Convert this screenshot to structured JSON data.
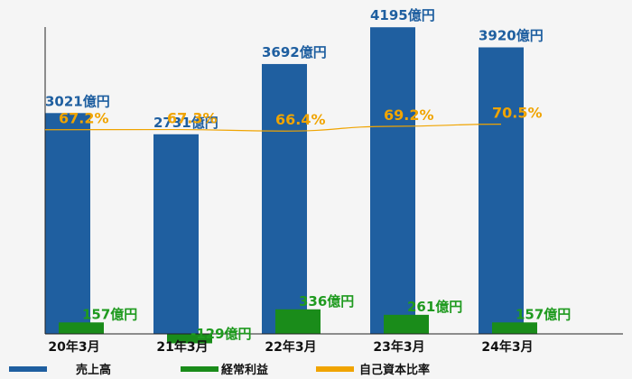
{
  "chart_data": {
    "type": "bar",
    "categories": [
      "20年3月",
      "21年3月",
      "22年3月",
      "23年3月",
      "24年3月"
    ],
    "series": [
      {
        "name": "売上高",
        "unit": "億円",
        "values": [
          3021,
          2731,
          3692,
          4195,
          3920
        ],
        "labels": [
          "3021億円",
          "2731億円",
          "3692億円",
          "4195億円",
          "3920億円"
        ],
        "color": "#1f5fa0"
      },
      {
        "name": "経常利益",
        "unit": "億円",
        "values": [
          157,
          -129,
          336,
          261,
          157
        ],
        "labels": [
          "157億円",
          "-129億円",
          "336億円",
          "261億円",
          "157億円"
        ],
        "color": "#1a8c1a"
      },
      {
        "name": "自己資本比率",
        "type": "line",
        "unit": "%",
        "values": [
          67.2,
          67.3,
          66.4,
          69.2,
          70.5
        ],
        "labels": [
          "67.2%",
          "67.3%",
          "66.4%",
          "69.2%",
          "70.5%"
        ],
        "color": "#f0a400"
      }
    ],
    "legend_position": "bottom-left",
    "grid": false
  }
}
